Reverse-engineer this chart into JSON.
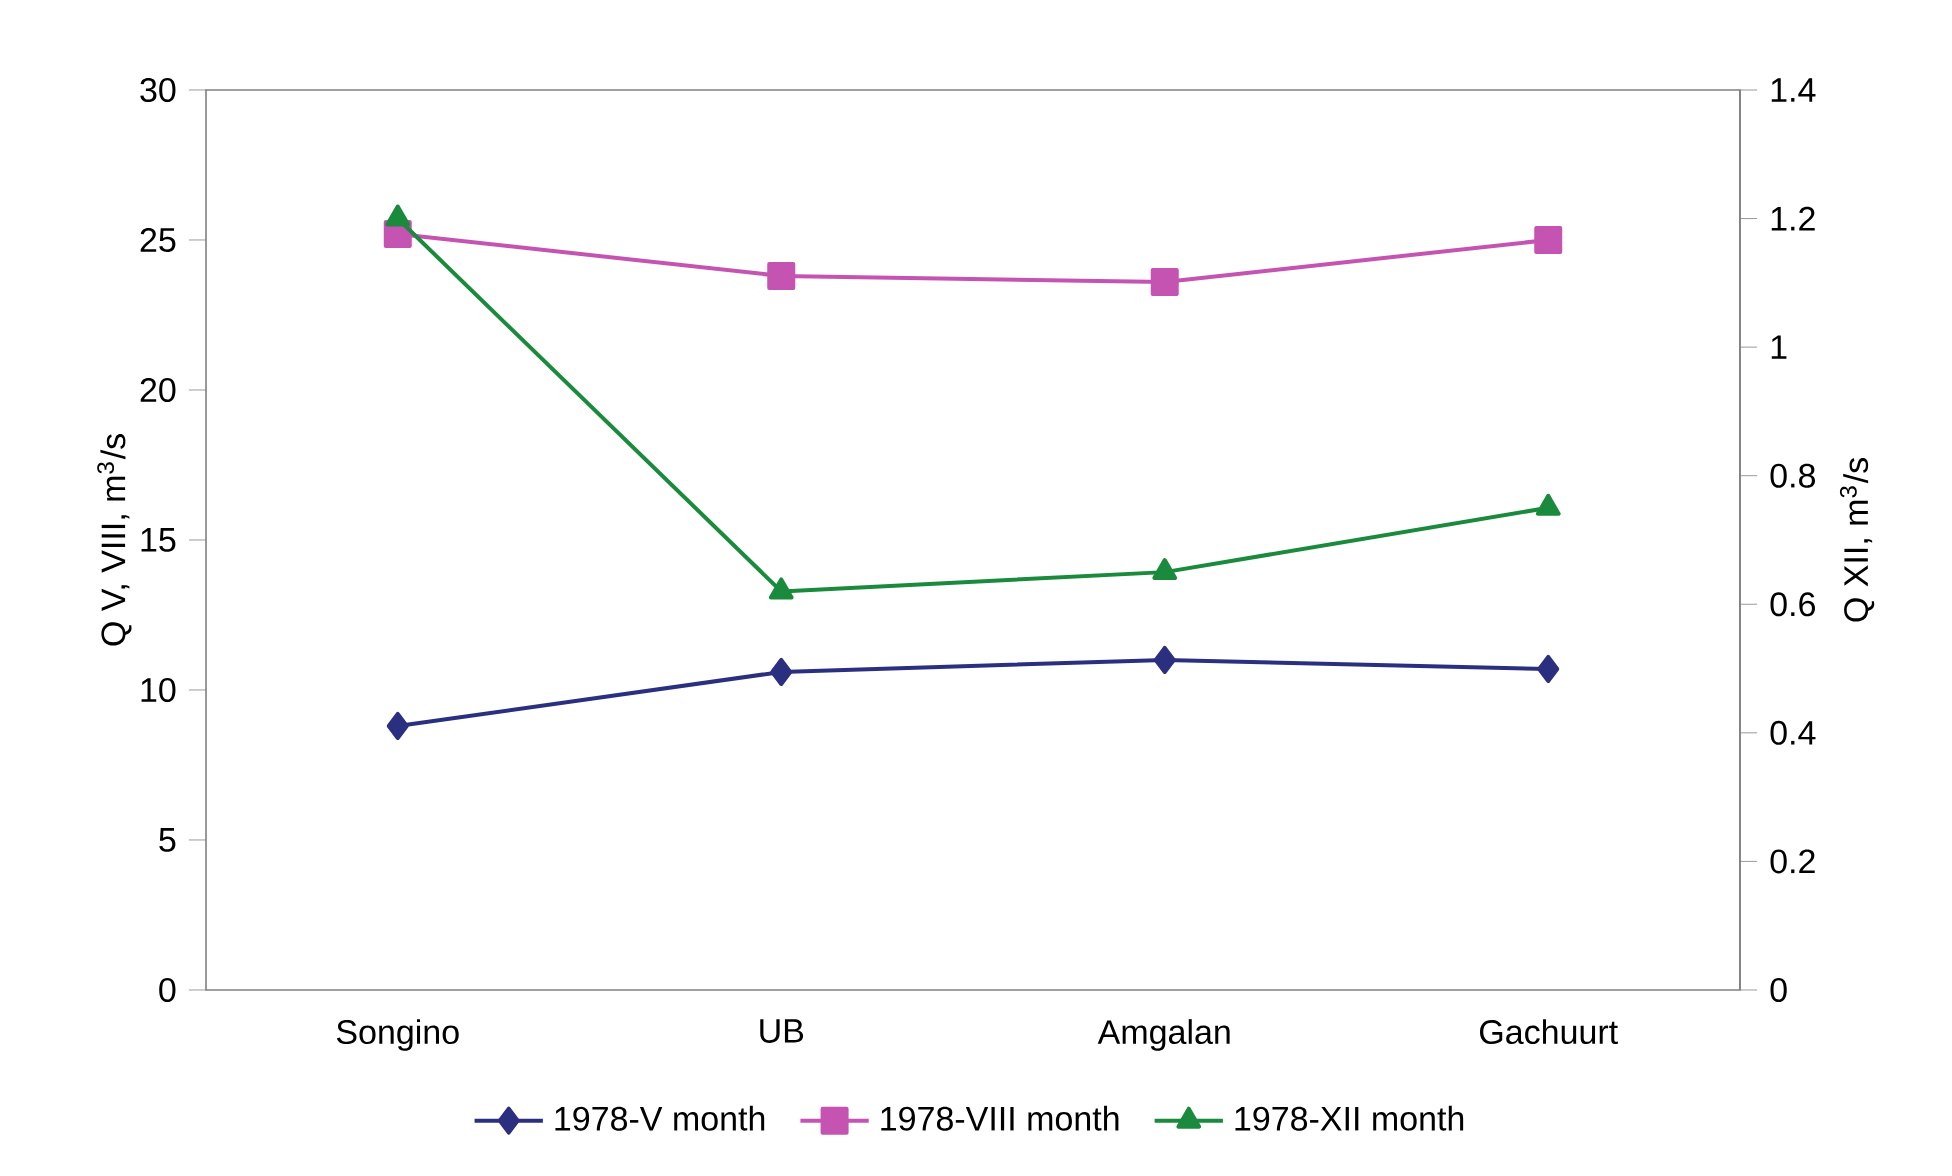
{
  "chart_data": {
    "type": "line",
    "categories": [
      "Songino",
      "UB",
      "Amgalan",
      "Gachuurt"
    ],
    "ylabel": "Q V, VIII,  m$^{3}$/s",
    "y2label": "Q XII,  m$^{3}$/s",
    "ylim": [
      0,
      30
    ],
    "yticks": [
      0,
      5,
      10,
      15,
      20,
      25,
      30
    ],
    "y2lim": [
      0,
      1.4
    ],
    "y2ticks": [
      0,
      0.2,
      0.4,
      0.6,
      0.8,
      1,
      1.2,
      1.4
    ],
    "legend": "bottom",
    "grid": false,
    "series": [
      {
        "name": "1978-V month",
        "color": "#2b2f80",
        "marker": "diamond",
        "values": [
          8.8,
          10.6,
          11.0,
          10.7
        ]
      },
      {
        "name": "1978-VIII month",
        "color": "#c453b2",
        "marker": "square",
        "values": [
          25.2,
          23.8,
          23.6,
          25.0
        ]
      },
      {
        "name": "1978-XII month",
        "color": "#1a8a3c",
        "marker": "triangle",
        "axis": "y2",
        "values": [
          1.2,
          0.62,
          0.65,
          0.75
        ]
      }
    ]
  }
}
